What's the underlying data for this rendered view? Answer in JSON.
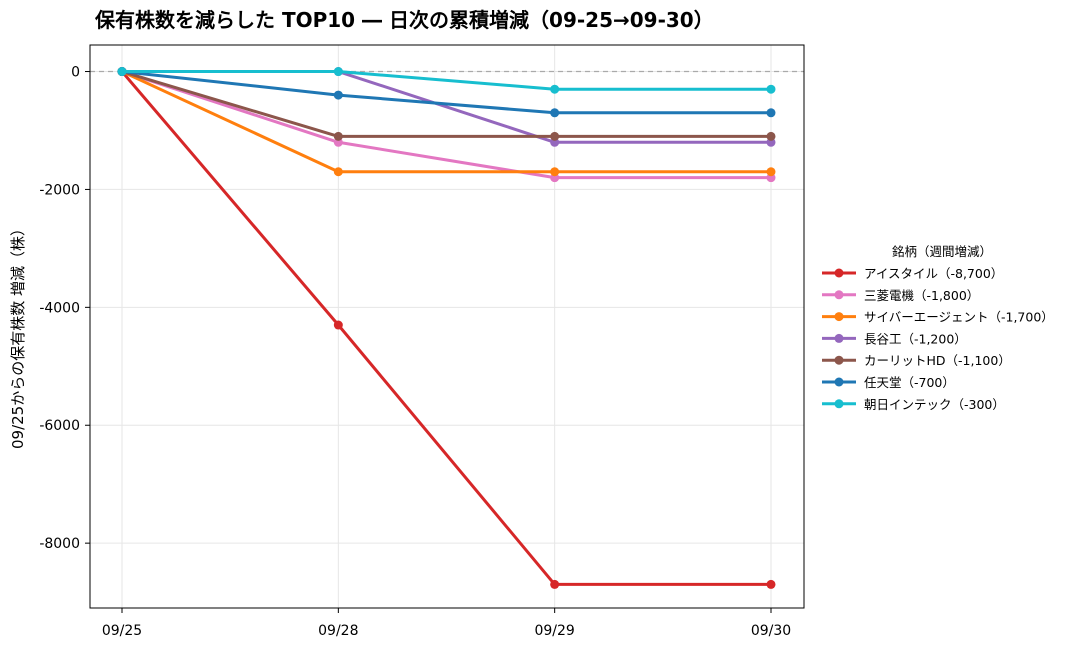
{
  "chart_data": {
    "type": "line",
    "title": "保有株数を減らした TOP10 ― 日次の累積増減（09-25→09-30）",
    "xlabel": "",
    "ylabel": "09/25からの保有株数 増減（株）",
    "categories": [
      "09/25",
      "09/28",
      "09/29",
      "09/30"
    ],
    "ylim": [
      -9100,
      450
    ],
    "yticks": [
      0,
      -2000,
      -4000,
      -6000,
      -8000
    ],
    "grid": true,
    "zero_line": true,
    "legend_title": "銘柄（週間増減）",
    "legend_position": "right",
    "series": [
      {
        "name": "アイスタイル（-8,700）",
        "color": "#d62728",
        "values": [
          0,
          -4300,
          -8700,
          -8700
        ]
      },
      {
        "name": "三菱電機（-1,800）",
        "color": "#e377c2",
        "values": [
          0,
          -1200,
          -1800,
          -1800
        ]
      },
      {
        "name": "サイバーエージェント（-1,700）",
        "color": "#ff7f0e",
        "values": [
          0,
          -1700,
          -1700,
          -1700
        ]
      },
      {
        "name": "長谷工（-1,200）",
        "color": "#9467bd",
        "values": [
          0,
          0,
          -1200,
          -1200
        ]
      },
      {
        "name": "カーリットHD（-1,100）",
        "color": "#8c564b",
        "values": [
          0,
          -1100,
          -1100,
          -1100
        ]
      },
      {
        "name": "任天堂（-700）",
        "color": "#1f77b4",
        "values": [
          0,
          -400,
          -700,
          -700
        ]
      },
      {
        "name": "朝日インテック（-300）",
        "color": "#17becf",
        "values": [
          0,
          0,
          -300,
          -300
        ]
      }
    ]
  }
}
